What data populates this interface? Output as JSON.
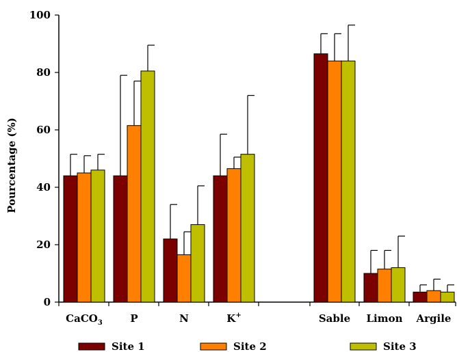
{
  "chart_data": {
    "type": "bar",
    "categories": [
      "CaCO3",
      "P",
      "N",
      "K+",
      "Sable",
      "Limon",
      "Argile"
    ],
    "category_labels": [
      {
        "base": "CaCO",
        "sub": "3",
        "sup": ""
      },
      {
        "base": "P",
        "sub": "",
        "sup": ""
      },
      {
        "base": "N",
        "sub": "",
        "sup": ""
      },
      {
        "base": "K",
        "sub": "",
        "sup": "+"
      },
      {
        "base": "Sable",
        "sub": "",
        "sup": ""
      },
      {
        "base": "Limon",
        "sub": "",
        "sup": ""
      },
      {
        "base": "Argile",
        "sub": "",
        "sup": ""
      }
    ],
    "series": [
      {
        "name": "Site 1",
        "color": "#7b0000",
        "values": [
          44,
          44,
          22,
          44,
          86.5,
          10,
          3.5
        ],
        "errors": [
          7.5,
          35,
          12,
          14.5,
          7,
          8,
          2.5
        ]
      },
      {
        "name": "Site 2",
        "color": "#ff8000",
        "values": [
          45,
          61.5,
          16.5,
          46.5,
          84,
          11.5,
          4
        ],
        "errors": [
          6,
          15.5,
          8,
          4,
          9.5,
          6.5,
          4
        ]
      },
      {
        "name": "Site 3",
        "color": "#bfbf00",
        "values": [
          46,
          80.5,
          27,
          51.5,
          84,
          12,
          3.5
        ],
        "errors": [
          5.5,
          9,
          13.5,
          20.5,
          12.5,
          11,
          2.5
        ]
      }
    ],
    "ylabel": "Pourcentage (%)",
    "xlabel": "",
    "title": "",
    "ylim": [
      0,
      100
    ],
    "yticks": [
      0,
      20,
      40,
      60,
      80,
      100
    ],
    "error_bars": "upper",
    "grid": false,
    "legend_position": "bottom"
  }
}
